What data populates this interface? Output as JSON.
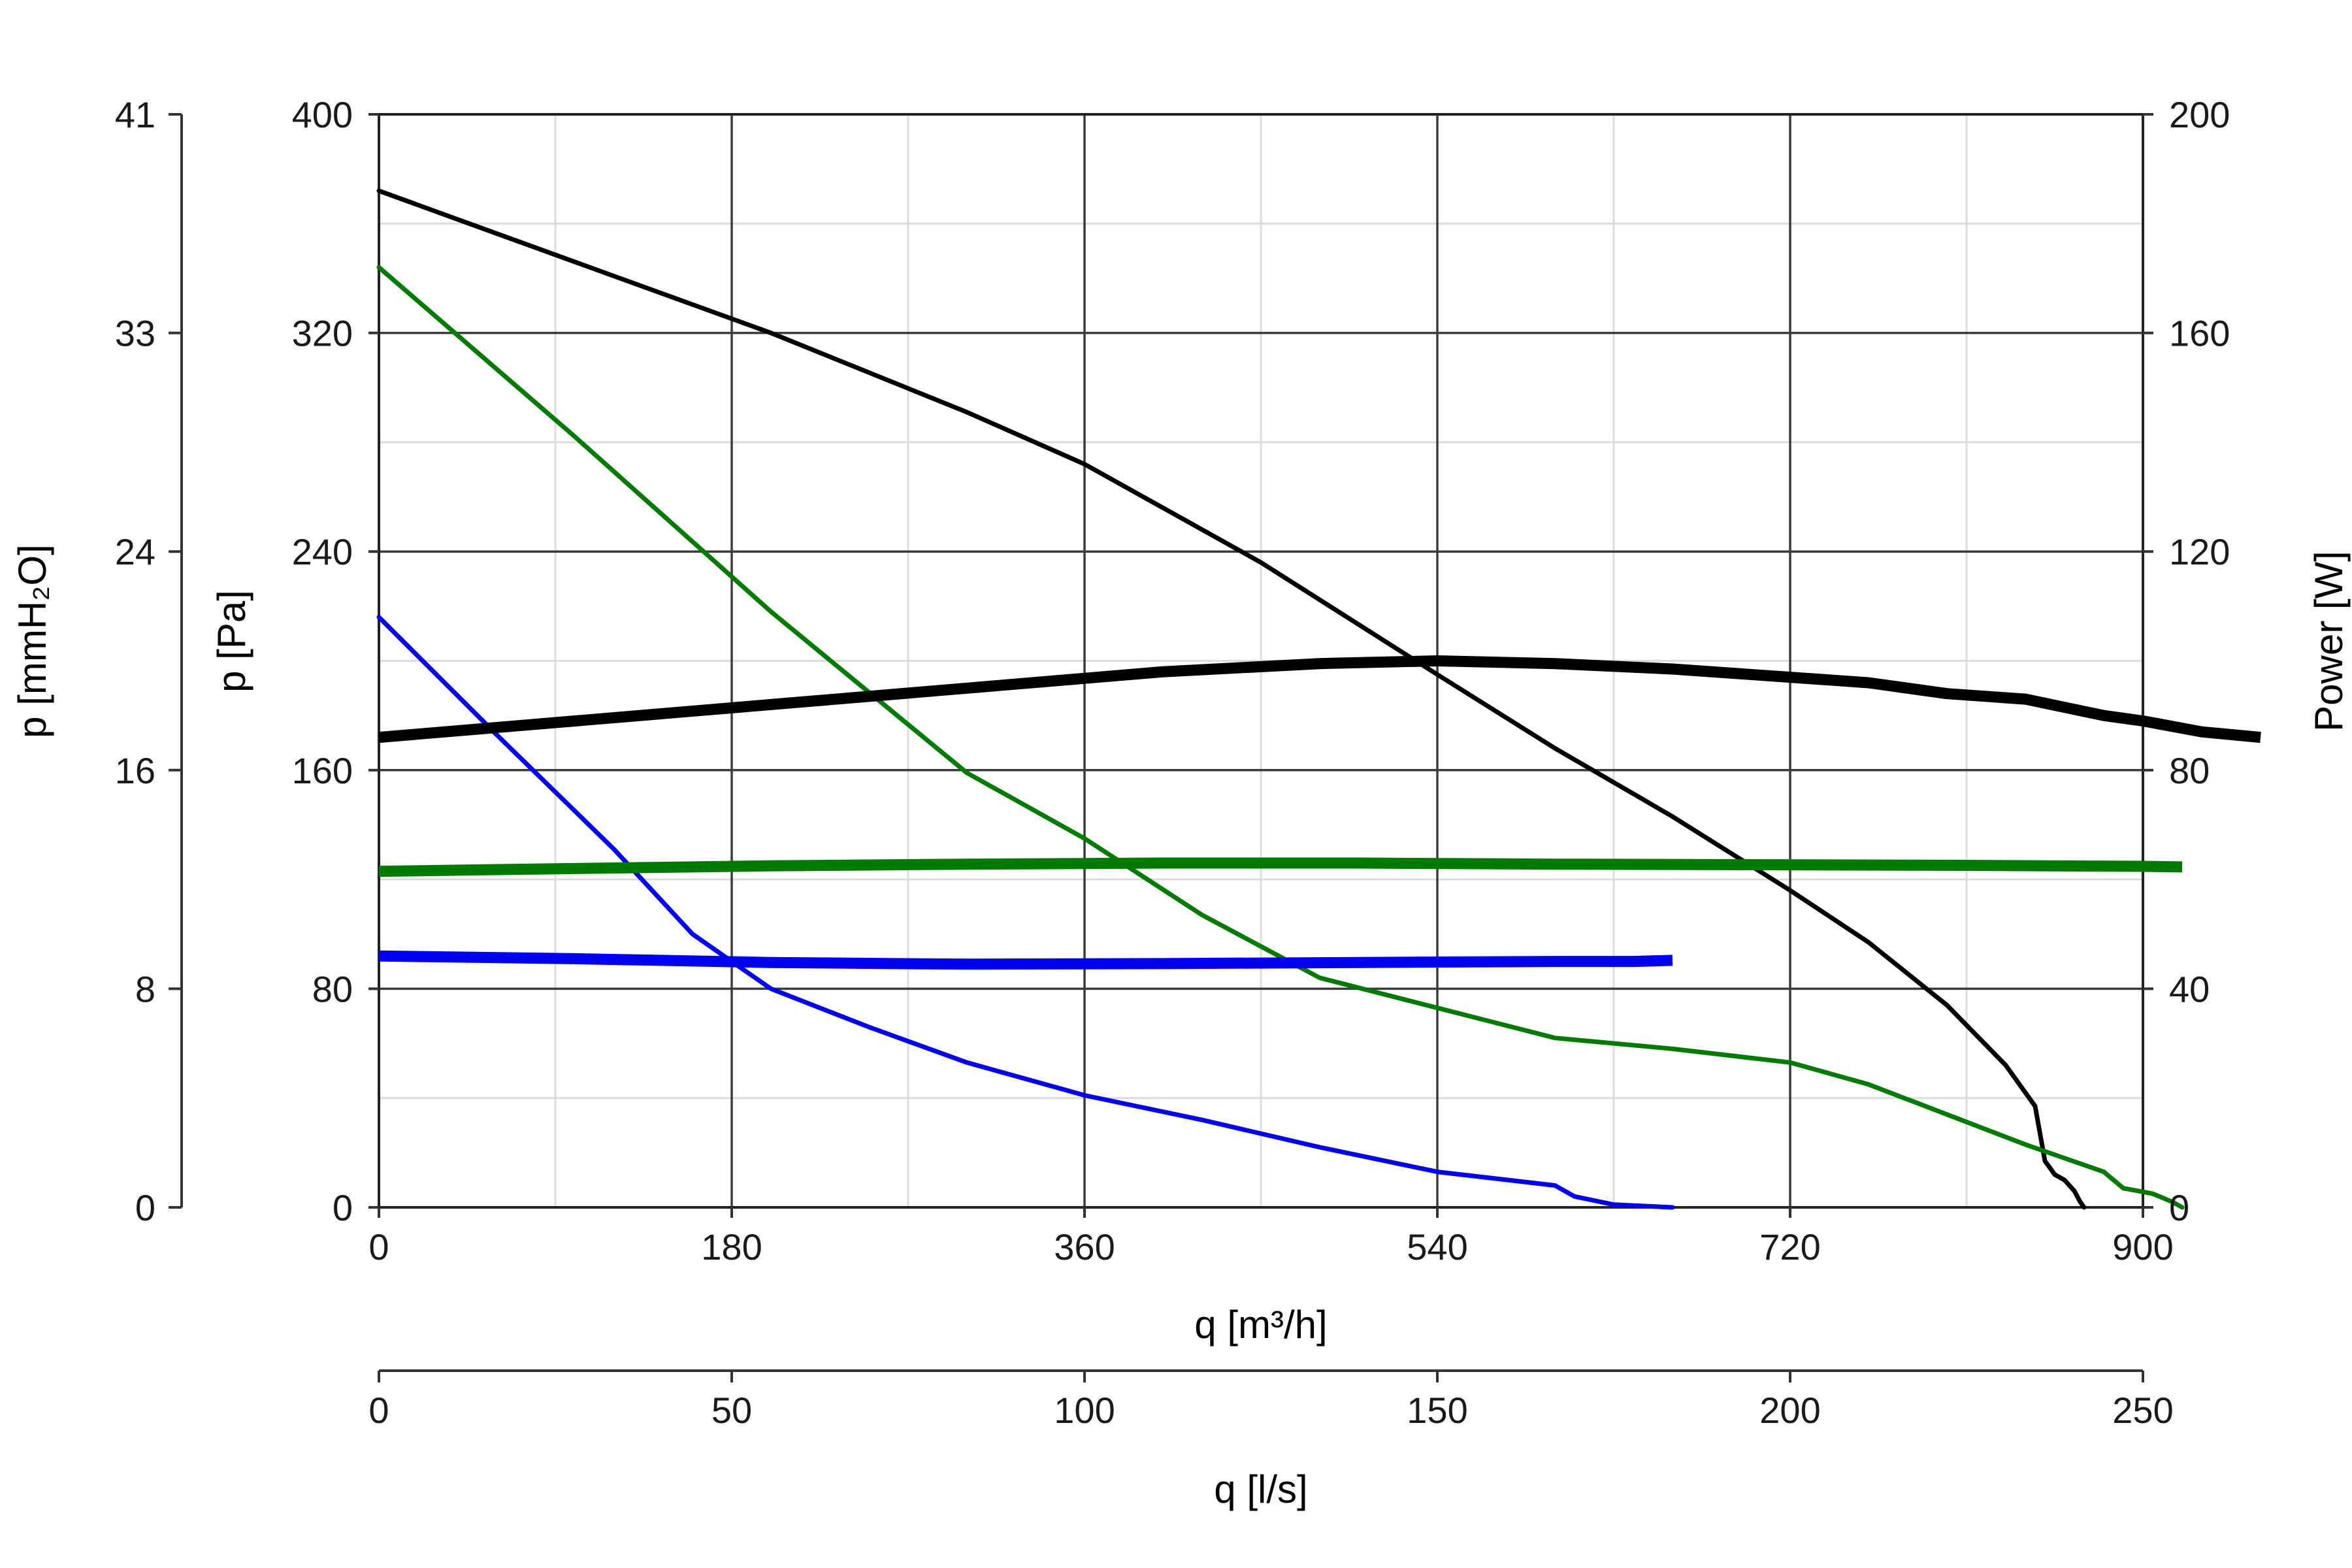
{
  "chart_data": {
    "type": "line",
    "x_axis": {
      "label": "q [m³/h]",
      "range": [
        0,
        900
      ],
      "major_ticks": [
        0,
        180,
        360,
        540,
        720,
        900
      ],
      "minor_step": 90
    },
    "x2_axis": {
      "label": "q [l/s]",
      "range": [
        0,
        250
      ],
      "ticks": [
        0,
        50,
        100,
        150,
        200,
        250
      ]
    },
    "y_axis": {
      "label": "p [Pa]",
      "range": [
        0,
        400
      ],
      "major_ticks": [
        0,
        80,
        160,
        240,
        320,
        400
      ],
      "minor_step": 40
    },
    "y_axis_mmh2o": {
      "label": "p [mmH₂O]",
      "ticks": [
        "0",
        "8",
        "16",
        "24",
        "33",
        "41"
      ]
    },
    "y2_axis": {
      "label": "Power [W]",
      "range": [
        0,
        200
      ],
      "ticks": [
        0,
        40,
        80,
        120,
        160,
        200
      ]
    },
    "grid": true,
    "colors": {
      "black": "#000000",
      "green": "#007a00",
      "blue": "#0000ee"
    },
    "series": [
      {
        "kind": "pressure",
        "axis": "left",
        "color": "black",
        "points": [
          [
            0,
            372
          ],
          [
            100,
            346
          ],
          [
            200,
            320
          ],
          [
            300,
            291
          ],
          [
            360,
            272
          ],
          [
            450,
            236
          ],
          [
            540,
            195
          ],
          [
            600,
            168
          ],
          [
            660,
            143
          ],
          [
            720,
            116
          ],
          [
            760,
            97
          ],
          [
            800,
            74
          ],
          [
            830,
            52
          ],
          [
            845,
            37
          ],
          [
            850,
            17
          ],
          [
            855,
            12
          ],
          [
            860,
            10
          ],
          [
            865,
            6
          ],
          [
            868,
            2
          ],
          [
            870,
            0
          ]
        ]
      },
      {
        "kind": "pressure",
        "axis": "left",
        "color": "green",
        "points": [
          [
            0,
            344
          ],
          [
            100,
            282
          ],
          [
            200,
            218
          ],
          [
            300,
            159
          ],
          [
            360,
            135
          ],
          [
            420,
            107
          ],
          [
            480,
            84
          ],
          [
            540,
            73
          ],
          [
            600,
            62
          ],
          [
            660,
            58
          ],
          [
            720,
            53
          ],
          [
            760,
            45
          ],
          [
            800,
            34
          ],
          [
            840,
            23
          ],
          [
            880,
            13
          ],
          [
            890,
            7
          ],
          [
            905,
            5
          ],
          [
            915,
            2
          ],
          [
            920,
            0
          ]
        ]
      },
      {
        "kind": "pressure",
        "axis": "left",
        "color": "blue",
        "points": [
          [
            0,
            216
          ],
          [
            60,
            173
          ],
          [
            120,
            131
          ],
          [
            160,
            100
          ],
          [
            200,
            80
          ],
          [
            250,
            66
          ],
          [
            300,
            53
          ],
          [
            360,
            41
          ],
          [
            420,
            32
          ],
          [
            480,
            22
          ],
          [
            540,
            13
          ],
          [
            600,
            8
          ],
          [
            610,
            4
          ],
          [
            630,
            1
          ],
          [
            660,
            0
          ]
        ]
      },
      {
        "kind": "power",
        "axis": "right",
        "color": "black",
        "points": [
          [
            0,
            86
          ],
          [
            100,
            89
          ],
          [
            200,
            92
          ],
          [
            300,
            95
          ],
          [
            400,
            98
          ],
          [
            480,
            99.5
          ],
          [
            540,
            100
          ],
          [
            600,
            99.5
          ],
          [
            660,
            98.5
          ],
          [
            720,
            97
          ],
          [
            760,
            96
          ],
          [
            800,
            94
          ],
          [
            840,
            93
          ],
          [
            880,
            90
          ],
          [
            900,
            89
          ],
          [
            930,
            87
          ],
          [
            960,
            86
          ]
        ]
      },
      {
        "kind": "power",
        "axis": "right",
        "color": "green",
        "points": [
          [
            0,
            61.5
          ],
          [
            100,
            62
          ],
          [
            200,
            62.5
          ],
          [
            300,
            62.8
          ],
          [
            400,
            63
          ],
          [
            500,
            63
          ],
          [
            600,
            62.8
          ],
          [
            700,
            62.7
          ],
          [
            800,
            62.6
          ],
          [
            900,
            62.4
          ],
          [
            920,
            62.3
          ]
        ]
      },
      {
        "kind": "power",
        "axis": "right",
        "color": "blue",
        "points": [
          [
            0,
            46
          ],
          [
            100,
            45.5
          ],
          [
            200,
            44.8
          ],
          [
            300,
            44.5
          ],
          [
            400,
            44.6
          ],
          [
            500,
            44.8
          ],
          [
            600,
            45
          ],
          [
            640,
            45
          ],
          [
            660,
            45.2
          ]
        ]
      }
    ]
  }
}
